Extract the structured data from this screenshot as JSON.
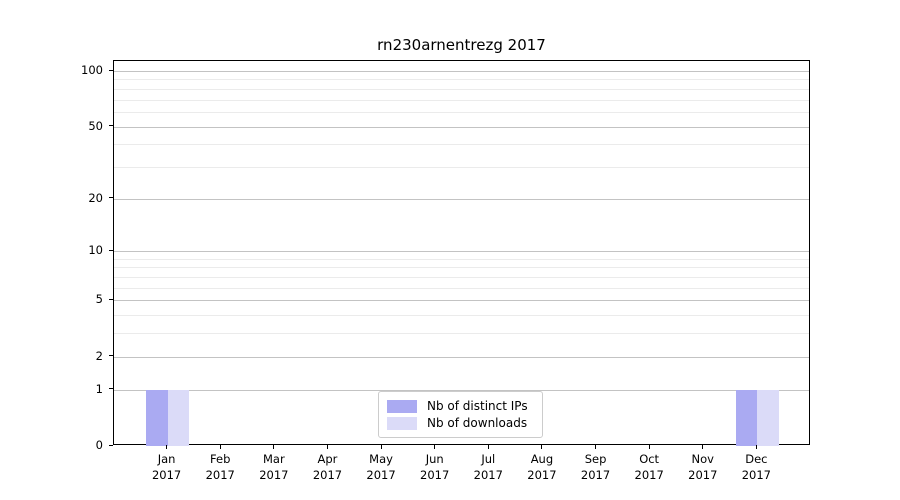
{
  "figure": {
    "title": "rn230arnentrezg 2017"
  },
  "chart_data": {
    "type": "bar",
    "title": "rn230arnentrezg 2017",
    "categories": [
      "Jan 2017",
      "Feb 2017",
      "Mar 2017",
      "Apr 2017",
      "May 2017",
      "Jun 2017",
      "Jul 2017",
      "Aug 2017",
      "Sep 2017",
      "Oct 2017",
      "Nov 2017",
      "Dec 2017"
    ],
    "x_tick_months": [
      "Jan",
      "Feb",
      "Mar",
      "Apr",
      "May",
      "Jun",
      "Jul",
      "Aug",
      "Sep",
      "Oct",
      "Nov",
      "Dec"
    ],
    "x_tick_year": "2017",
    "series": [
      {
        "name": "Nb of distinct IPs",
        "color": "#aaaaf2",
        "values": [
          1,
          0,
          0,
          0,
          0,
          0,
          0,
          0,
          0,
          0,
          0,
          1
        ]
      },
      {
        "name": "Nb of downloads",
        "color": "#dbdbf8",
        "values": [
          1,
          0,
          0,
          0,
          0,
          0,
          0,
          0,
          0,
          0,
          0,
          1
        ]
      }
    ],
    "yscale": "log1p",
    "ylim": [
      0,
      113
    ],
    "ytick_values": [
      0,
      1,
      2,
      5,
      10,
      20,
      50,
      100
    ],
    "ytick_labels": [
      "0",
      "1",
      "2",
      "5",
      "10",
      "20",
      "50",
      "100"
    ],
    "minor_grid_values": [
      3,
      4,
      6,
      7,
      8,
      9,
      30,
      40,
      60,
      70,
      80,
      90
    ],
    "grid": "horizontal",
    "legend_position": "bottom-center"
  },
  "colors": {
    "background": "#ffffff",
    "spine": "#000000",
    "major_grid": "#c3c3c3",
    "minor_grid": "#ebebeb",
    "legend_border": "#cccccc",
    "series_distinct_ips": "#aaaaf2",
    "series_downloads": "#dbdbf8"
  }
}
